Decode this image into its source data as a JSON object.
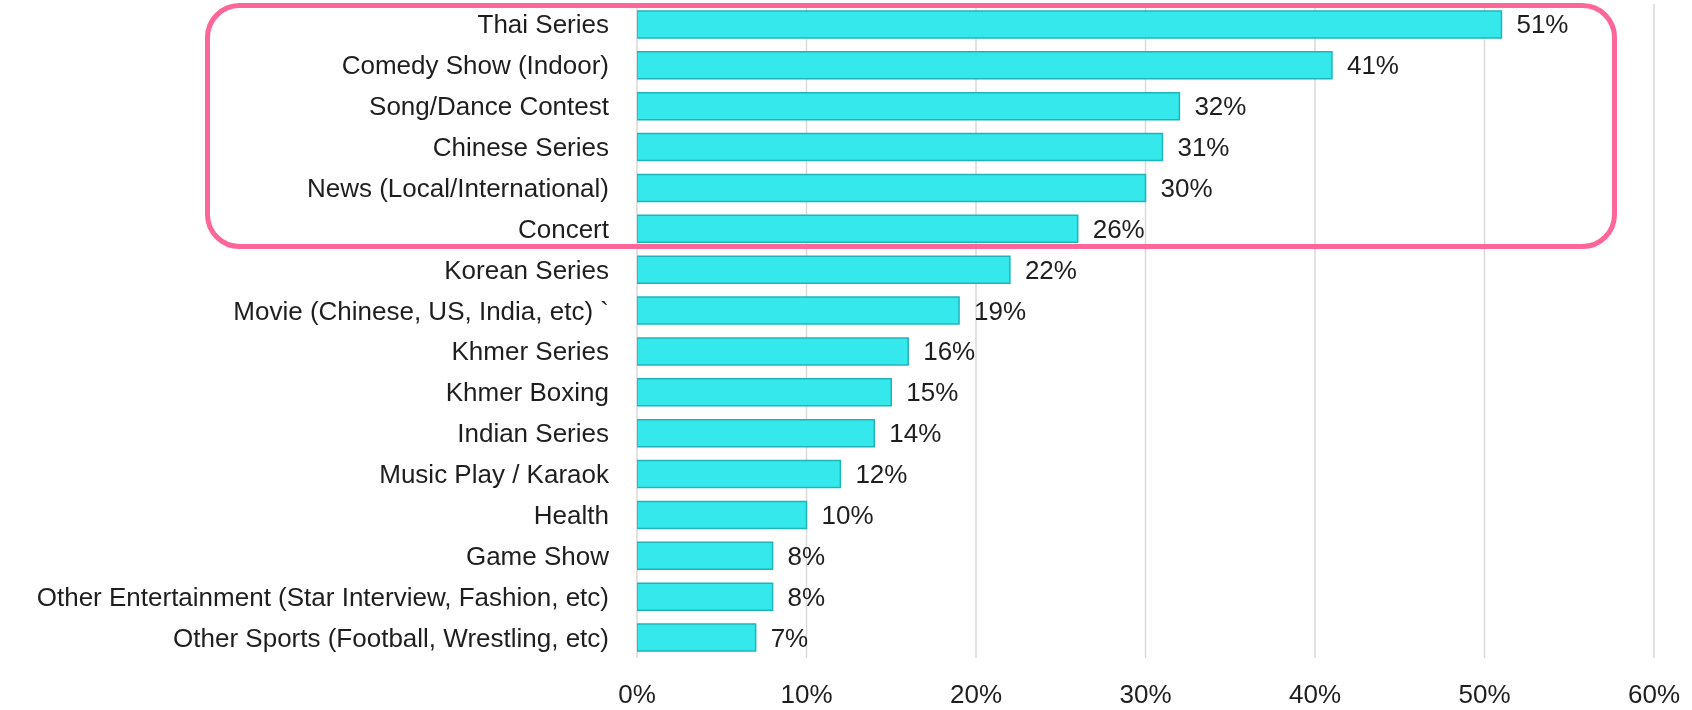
{
  "chart_data": {
    "type": "bar",
    "orientation": "horizontal",
    "categories": [
      "Thai Series",
      "Comedy Show (Indoor)",
      "Song/Dance Contest",
      "Chinese Series",
      "News (Local/International)",
      "Concert",
      "Korean Series",
      "Movie (Chinese, US, India, etc) `",
      "Khmer Series",
      "Khmer Boxing",
      "Indian Series",
      "Music Play / Karaok",
      "Health",
      "Game Show",
      "Other Entertainment (Star Interview, Fashion, etc)",
      "Other Sports (Football, Wrestling, etc)"
    ],
    "values": [
      51,
      41,
      32,
      31,
      30,
      26,
      22,
      19,
      16,
      15,
      14,
      12,
      10,
      8,
      8,
      7
    ],
    "value_labels": [
      "51%",
      "41%",
      "32%",
      "31%",
      "30%",
      "26%",
      "22%",
      "19%",
      "16%",
      "15%",
      "14%",
      "12%",
      "10%",
      "8%",
      "8%",
      "7%"
    ],
    "color": "#35e8ec",
    "xlim": [
      0,
      60
    ],
    "xticks": [
      {
        "value": 0,
        "label": "0%"
      },
      {
        "value": 10,
        "label": "10%"
      },
      {
        "value": 20,
        "label": "20%"
      },
      {
        "value": 30,
        "label": "30%"
      },
      {
        "value": 40,
        "label": "40%"
      },
      {
        "value": 50,
        "label": "50%"
      },
      {
        "value": 60,
        "label": "60%"
      }
    ],
    "grid": "x"
  }
}
